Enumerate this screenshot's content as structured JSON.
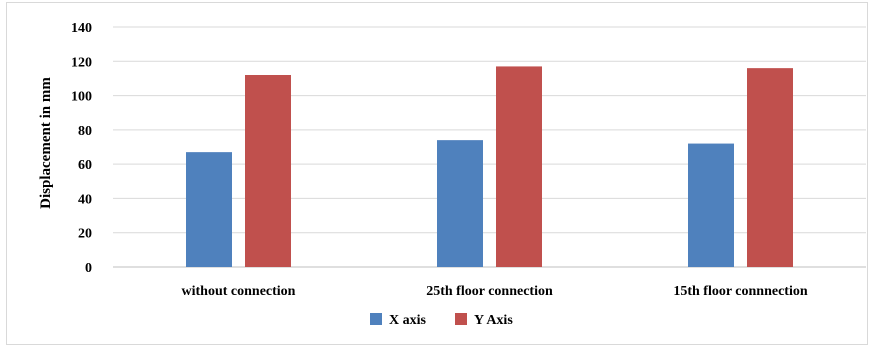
{
  "chart_data": {
    "type": "bar",
    "title": "",
    "xlabel": "",
    "ylabel": "Displacement  in mm",
    "categories": [
      "without connection",
      "25th floor connection",
      "15th floor connnection"
    ],
    "series": [
      {
        "name": "X axis",
        "values": [
          67,
          74,
          72
        ],
        "color": "#4f81bd"
      },
      {
        "name": "Y Axis",
        "values": [
          112,
          117,
          116
        ],
        "color": "#c0504d"
      }
    ],
    "ylim": [
      0,
      140
    ],
    "yticks": [
      0,
      20,
      40,
      60,
      80,
      100,
      120,
      140
    ],
    "grid": true,
    "legend_position": "bottom"
  }
}
